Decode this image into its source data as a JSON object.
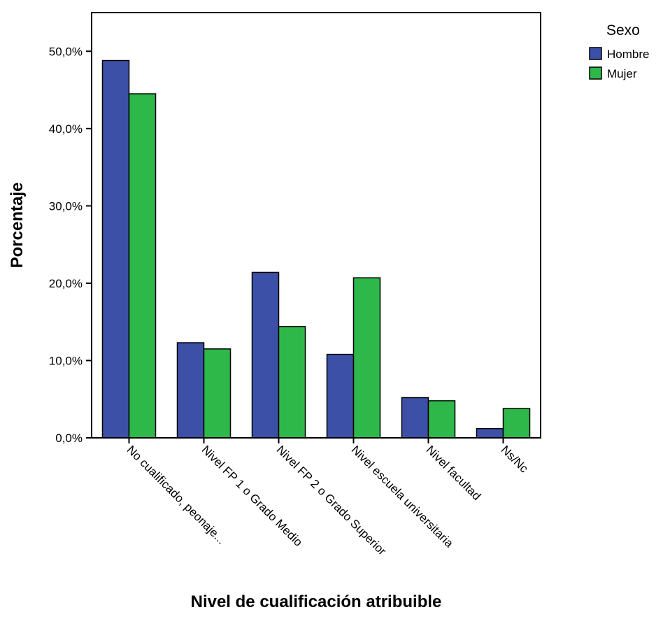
{
  "chart_data": {
    "type": "bar",
    "title": "",
    "xlabel": "Nivel de cualificación atribuible",
    "ylabel": "Porcentaje",
    "ylim": [
      0,
      55
    ],
    "yticks": [
      "0,0%",
      "10,0%",
      "20,0%",
      "30,0%",
      "40,0%",
      "50,0%"
    ],
    "ytick_values": [
      0,
      10,
      20,
      30,
      40,
      50
    ],
    "categories": [
      "No cualificado, peonaje...",
      "Nivel FP 1 o Grado Medio",
      "Nivel FP 2 o Grado Superior",
      "Nivel escuela universitaria",
      "Nivel facultad",
      "Ns/Nc"
    ],
    "series": [
      {
        "name": "Hombre",
        "color": "#3c50a8",
        "values": [
          48.8,
          12.3,
          21.4,
          10.8,
          5.2,
          1.2
        ]
      },
      {
        "name": "Mujer",
        "color": "#2eb84a",
        "values": [
          44.5,
          11.5,
          14.4,
          20.7,
          4.8,
          3.8
        ]
      }
    ],
    "legend": {
      "title": "Sexo",
      "placement": "top-right"
    },
    "grid": false
  }
}
